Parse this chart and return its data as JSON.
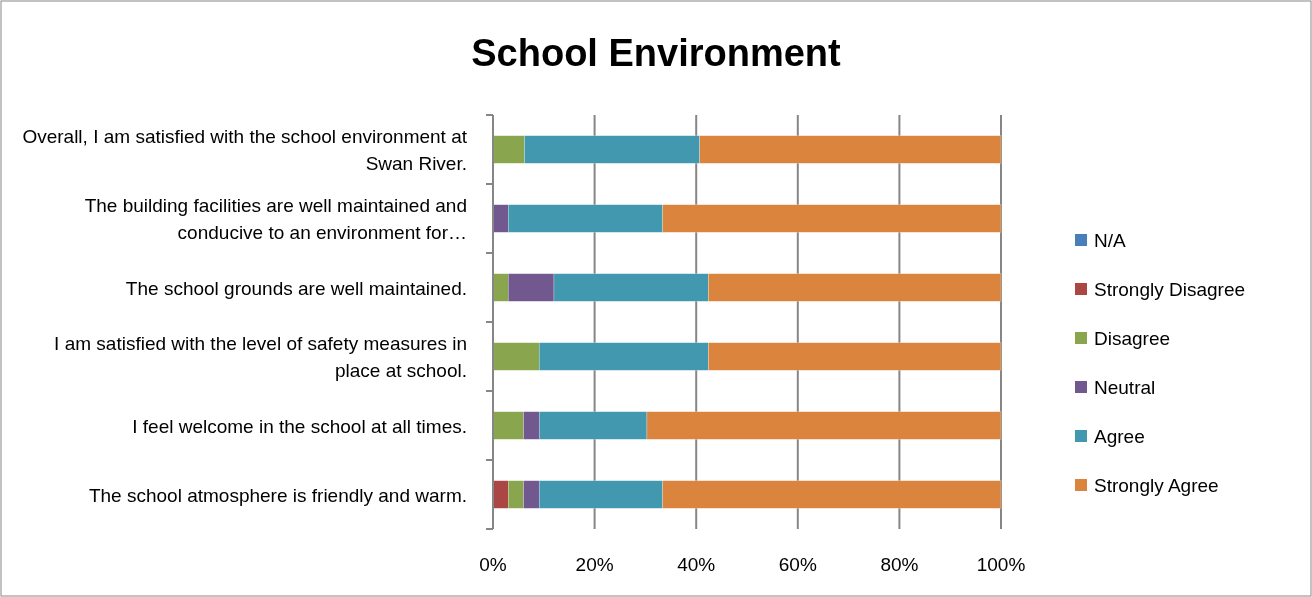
{
  "chart_data": {
    "type": "bar",
    "orientation": "horizontal",
    "stacked": true,
    "title": "School Environment",
    "categories": [
      "Overall, I am satisfied with the school environment at Swan River.",
      "The building facilities are well maintained and conducive to an environment for…",
      "The school grounds are well maintained.",
      "I am satisfied with the level of safety measures in place at school.",
      "I feel welcome in the school at all times.",
      "The school atmosphere is friendly and warm."
    ],
    "series": [
      {
        "name": "N/A",
        "color": "#4a7ebb",
        "values": [
          0,
          0,
          0,
          0,
          0,
          0
        ]
      },
      {
        "name": "Strongly Disagree",
        "color": "#aa4643",
        "values": [
          0,
          0,
          0,
          0,
          0,
          3.0
        ]
      },
      {
        "name": "Disagree",
        "color": "#89a54e",
        "values": [
          6.2,
          0,
          3.0,
          9.1,
          6.0,
          3.0
        ]
      },
      {
        "name": "Neutral",
        "color": "#71588f",
        "values": [
          0,
          3.0,
          9.0,
          0,
          3.1,
          3.1
        ]
      },
      {
        "name": "Agree",
        "color": "#4198af",
        "values": [
          34.5,
          30.4,
          30.4,
          33.3,
          21.2,
          24.3
        ]
      },
      {
        "name": "Strongly Agree",
        "color": "#db843d",
        "values": [
          59.3,
          66.6,
          57.6,
          57.6,
          69.7,
          66.6
        ]
      }
    ],
    "xlim": [
      0,
      100
    ],
    "xticks": [
      {
        "value": 0,
        "label": "0%"
      },
      {
        "value": 20,
        "label": "20%"
      },
      {
        "value": 40,
        "label": "40%"
      },
      {
        "value": 60,
        "label": "60%"
      },
      {
        "value": 80,
        "label": "80%"
      },
      {
        "value": 100,
        "label": "100%"
      }
    ],
    "grid": "x",
    "legend": "right"
  }
}
